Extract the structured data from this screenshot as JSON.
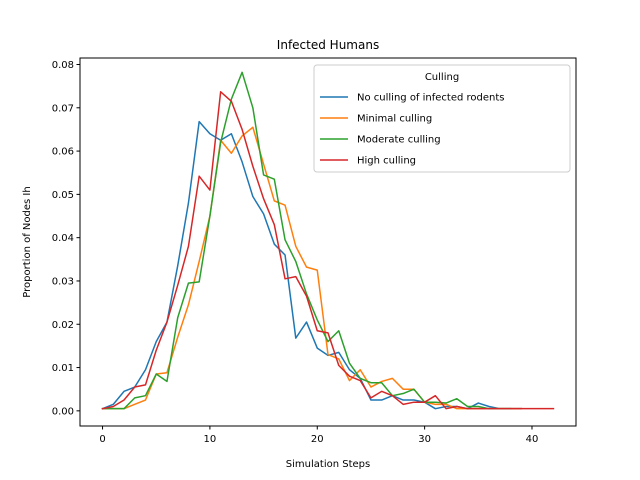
{
  "chart_data": {
    "type": "line",
    "title": "Infected Humans",
    "xlabel": "Simulation Steps",
    "ylabel": "Proportion of Nodes Ih",
    "xlim": [
      -2.1,
      44.1
    ],
    "ylim": [
      -0.0035,
      0.0815
    ],
    "xticks": [
      0,
      10,
      20,
      30,
      40
    ],
    "yticks": [
      0.0,
      0.01,
      0.02,
      0.03,
      0.04,
      0.05,
      0.06,
      0.07,
      0.08
    ],
    "ytick_labels": [
      "0.00",
      "0.01",
      "0.02",
      "0.03",
      "0.04",
      "0.05",
      "0.06",
      "0.07",
      "0.08"
    ],
    "grid": false,
    "legend": {
      "title": "Culling",
      "location": "upper right",
      "entries": [
        "No culling of infected rodents",
        "Minimal culling",
        "Moderate culling",
        "High culling"
      ]
    },
    "series": [
      {
        "name": "No culling of infected rodents",
        "color": "#1f77b4",
        "x": [
          0,
          1,
          2,
          3,
          4,
          5,
          6,
          7,
          8,
          9,
          10,
          11,
          12,
          13,
          14,
          15,
          16,
          17,
          18,
          19,
          20,
          21,
          22,
          23,
          24,
          25,
          26,
          27,
          28,
          29,
          30,
          31,
          32,
          33,
          34,
          35,
          36,
          37,
          38,
          39
        ],
        "y": [
          0.0005,
          0.0015,
          0.0045,
          0.0055,
          0.0095,
          0.016,
          0.0205,
          0.0335,
          0.048,
          0.0668,
          0.064,
          0.0625,
          0.064,
          0.0575,
          0.0495,
          0.0455,
          0.0385,
          0.036,
          0.0168,
          0.0205,
          0.0145,
          0.0128,
          0.0135,
          0.0095,
          0.0075,
          0.0025,
          0.0025,
          0.0035,
          0.0025,
          0.0025,
          0.002,
          0.0005,
          0.001,
          0.001,
          0.0005,
          0.0018,
          0.001,
          0.0005,
          0.0005,
          0.0005
        ]
      },
      {
        "name": "Minimal culling",
        "color": "#ff7f0e",
        "x": [
          0,
          1,
          2,
          3,
          4,
          5,
          6,
          7,
          8,
          9,
          10,
          11,
          12,
          13,
          14,
          15,
          16,
          17,
          18,
          19,
          20,
          21,
          22,
          23,
          24,
          25,
          26,
          27,
          28,
          29,
          30,
          31,
          32,
          33,
          34,
          35,
          36,
          37,
          38,
          39
        ],
        "y": [
          0.0005,
          0.0005,
          0.0005,
          0.0015,
          0.0025,
          0.0085,
          0.0088,
          0.017,
          0.0245,
          0.0345,
          0.045,
          0.0625,
          0.0595,
          0.0635,
          0.0655,
          0.057,
          0.0485,
          0.0475,
          0.038,
          0.0332,
          0.0325,
          0.013,
          0.012,
          0.007,
          0.0095,
          0.0055,
          0.0068,
          0.0075,
          0.005,
          0.005,
          0.002,
          0.0015,
          0.0015,
          0.0005,
          0.0005,
          0.0005,
          0.0005,
          0.0005,
          0.0005,
          0.0005
        ]
      },
      {
        "name": "Moderate culling",
        "color": "#2ca02c",
        "x": [
          0,
          1,
          2,
          3,
          4,
          5,
          6,
          7,
          8,
          9,
          10,
          11,
          12,
          13,
          14,
          15,
          16,
          17,
          18,
          19,
          20,
          21,
          22,
          23,
          24,
          25,
          26,
          27,
          28,
          29,
          30,
          31,
          32,
          33,
          34,
          35,
          36,
          37,
          38
        ],
        "y": [
          0.0005,
          0.0005,
          0.0005,
          0.003,
          0.0035,
          0.0085,
          0.0068,
          0.0215,
          0.0295,
          0.0298,
          0.045,
          0.062,
          0.072,
          0.0782,
          0.07,
          0.0545,
          0.0535,
          0.0395,
          0.0345,
          0.027,
          0.021,
          0.016,
          0.0185,
          0.011,
          0.0075,
          0.0065,
          0.0065,
          0.0035,
          0.004,
          0.005,
          0.002,
          0.002,
          0.0018,
          0.0028,
          0.001,
          0.001,
          0.0005,
          0.0005,
          0.0005
        ]
      },
      {
        "name": "High culling",
        "color": "#d62728",
        "x": [
          0,
          1,
          2,
          3,
          4,
          5,
          6,
          7,
          8,
          9,
          10,
          11,
          12,
          13,
          14,
          15,
          16,
          17,
          18,
          19,
          20,
          21,
          22,
          23,
          24,
          25,
          26,
          27,
          28,
          29,
          30,
          31,
          32,
          33,
          34,
          35,
          36,
          37,
          38,
          39,
          40,
          41,
          42
        ],
        "y": [
          0.0005,
          0.001,
          0.0025,
          0.0055,
          0.006,
          0.014,
          0.0205,
          0.029,
          0.038,
          0.0542,
          0.051,
          0.0737,
          0.0715,
          0.065,
          0.0565,
          0.049,
          0.043,
          0.0305,
          0.031,
          0.0265,
          0.0185,
          0.018,
          0.0105,
          0.008,
          0.007,
          0.003,
          0.0045,
          0.0035,
          0.0015,
          0.002,
          0.002,
          0.0035,
          0.0005,
          0.001,
          0.0005,
          0.0005,
          0.0005,
          0.0005,
          0.0005,
          0.0005,
          0.0005,
          0.0005,
          0.0005
        ]
      }
    ]
  }
}
